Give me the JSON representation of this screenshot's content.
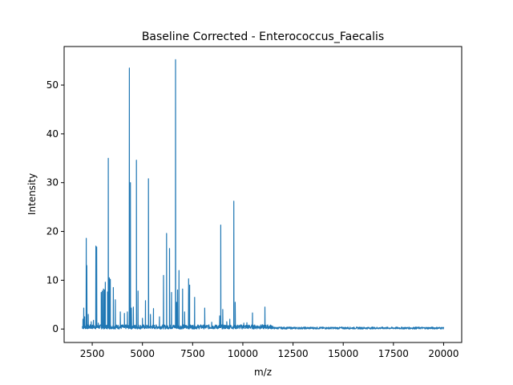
{
  "chart_data": {
    "type": "line",
    "title": "Baseline Corrected - Enterococcus_Faecalis",
    "xlabel": "m/z",
    "ylabel": "Intensity",
    "xlim": [
      1100,
      20900
    ],
    "ylim": [
      -2.76,
      57.9
    ],
    "x_ticks": [
      2500,
      5000,
      7500,
      10000,
      12500,
      15000,
      17500,
      20000
    ],
    "x_tick_labels": [
      "2500",
      "5000",
      "7500",
      "10000",
      "12500",
      "15000",
      "17500",
      "20000"
    ],
    "y_ticks": [
      0,
      10,
      20,
      30,
      40,
      50
    ],
    "y_tick_labels": [
      "0",
      "10",
      "20",
      "30",
      "40",
      "50"
    ],
    "grid": false,
    "legend": "none",
    "line_color": "#1f77b4",
    "series": [
      {
        "baseline_range": [
          2000,
          20000
        ],
        "baseline_noise": 0.4,
        "peaks": [
          [
            2040,
            2.0
          ],
          [
            2080,
            4.3
          ],
          [
            2120,
            2.5
          ],
          [
            2200,
            18.6
          ],
          [
            2230,
            13.0
          ],
          [
            2300,
            3.0
          ],
          [
            2450,
            1.5
          ],
          [
            2560,
            1.8
          ],
          [
            2680,
            17.0
          ],
          [
            2720,
            16.8
          ],
          [
            2800,
            1.2
          ],
          [
            2950,
            7.5
          ],
          [
            3000,
            7.8
          ],
          [
            3060,
            8.2
          ],
          [
            3100,
            8.0
          ],
          [
            3150,
            9.6
          ],
          [
            3260,
            7.6
          ],
          [
            3300,
            35.0
          ],
          [
            3350,
            10.5
          ],
          [
            3400,
            10.2
          ],
          [
            3550,
            8.5
          ],
          [
            3650,
            6.0
          ],
          [
            3900,
            3.5
          ],
          [
            4100,
            3.2
          ],
          [
            4250,
            3.5
          ],
          [
            4350,
            53.5
          ],
          [
            4400,
            30.0
          ],
          [
            4450,
            4.3
          ],
          [
            4550,
            4.5
          ],
          [
            4700,
            34.6
          ],
          [
            4780,
            7.8
          ],
          [
            5000,
            2.2
          ],
          [
            5150,
            5.8
          ],
          [
            5300,
            30.8
          ],
          [
            5400,
            3.0
          ],
          [
            5550,
            4.2
          ],
          [
            5850,
            2.5
          ],
          [
            6050,
            11.0
          ],
          [
            6200,
            19.6
          ],
          [
            6350,
            16.5
          ],
          [
            6450,
            7.5
          ],
          [
            6650,
            55.2
          ],
          [
            6700,
            5.5
          ],
          [
            6750,
            8.0
          ],
          [
            6820,
            12.0
          ],
          [
            7000,
            8.2
          ],
          [
            7100,
            3.5
          ],
          [
            7300,
            10.3
          ],
          [
            7350,
            9.0
          ],
          [
            7600,
            6.5
          ],
          [
            8100,
            4.3
          ],
          [
            8450,
            1.4
          ],
          [
            8850,
            2.7
          ],
          [
            8900,
            21.3
          ],
          [
            9000,
            4.0
          ],
          [
            9200,
            1.5
          ],
          [
            9350,
            2.0
          ],
          [
            9550,
            26.2
          ],
          [
            9620,
            5.5
          ],
          [
            10050,
            1.2
          ],
          [
            10200,
            1.3
          ],
          [
            10480,
            3.3
          ],
          [
            11100,
            4.5
          ]
        ]
      }
    ]
  }
}
